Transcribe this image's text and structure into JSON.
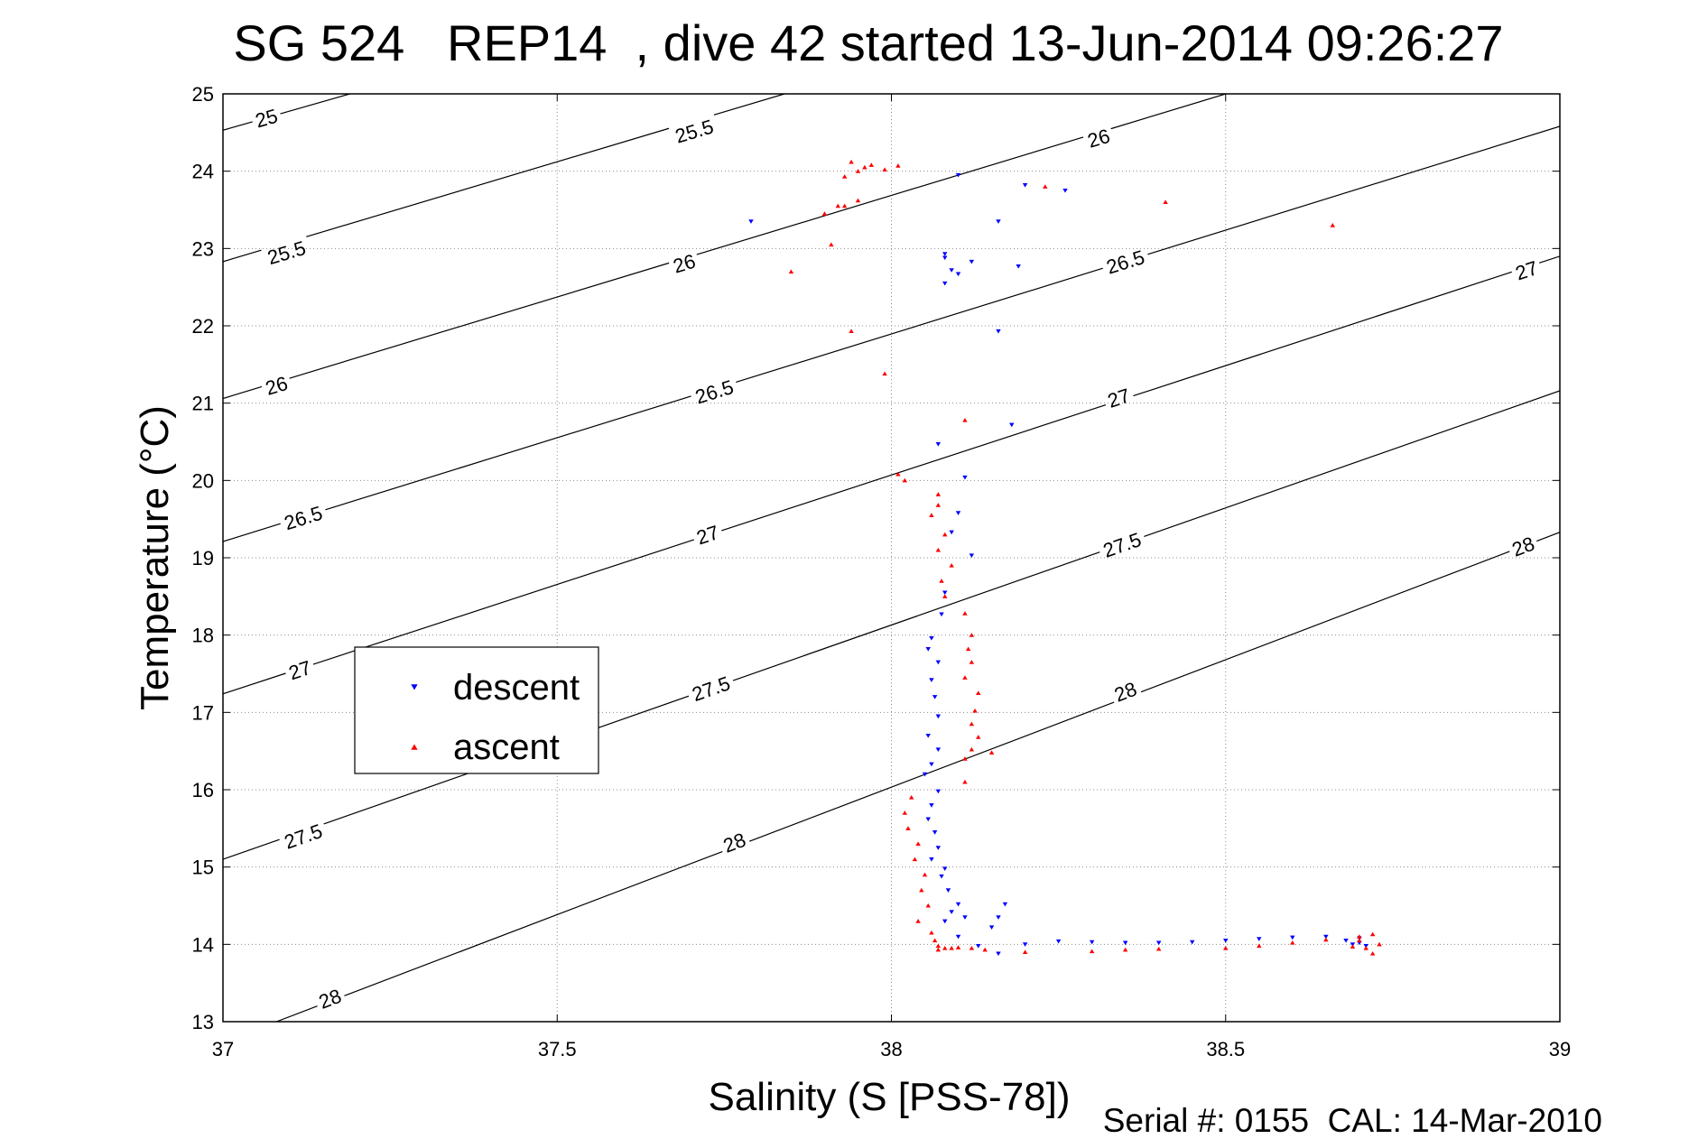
{
  "chart_data": {
    "type": "scatter",
    "title": "SG 524   REP14  , dive 42 started 13-Jun-2014 09:26:27",
    "xlabel": "Salinity (S [PSS-78])",
    "ylabel": "Temperature (°C)",
    "xlim": [
      37,
      39
    ],
    "ylim": [
      13,
      25
    ],
    "x_ticks": [
      "37",
      "37.5",
      "38",
      "38.5",
      "39"
    ],
    "y_ticks": [
      "13",
      "14",
      "15",
      "16",
      "17",
      "18",
      "19",
      "20",
      "21",
      "22",
      "23",
      "24",
      "25"
    ],
    "grid": true,
    "legend_position": "middle-left",
    "footer": "Serial #: 0155  CAL: 14-Mar-2010",
    "density_contours": [
      {
        "label": "25",
        "points": [
          [
            37.0,
            24.53
          ],
          [
            37.19,
            25.0
          ]
        ],
        "label_at": [
          [
            37.065,
            24.69
          ]
        ]
      },
      {
        "label": "25.5",
        "points": [
          [
            37.0,
            22.83
          ],
          [
            37.84,
            25.0
          ]
        ],
        "label_at": [
          [
            37.095,
            22.95
          ],
          [
            37.705,
            24.52
          ]
        ]
      },
      {
        "label": "26",
        "points": [
          [
            37.0,
            21.06
          ],
          [
            38.5,
            25.0
          ]
        ],
        "label_at": [
          [
            37.08,
            21.23
          ],
          [
            37.69,
            22.81
          ],
          [
            38.31,
            24.43
          ]
        ]
      },
      {
        "label": "26.5",
        "points": [
          [
            37.0,
            19.21
          ],
          [
            39.0,
            24.58
          ]
        ],
        "label_at": [
          [
            37.12,
            19.52
          ],
          [
            37.735,
            21.15
          ],
          [
            38.35,
            22.83
          ]
        ]
      },
      {
        "label": "27",
        "points": [
          [
            37.0,
            17.24
          ],
          [
            39.0,
            22.9
          ]
        ],
        "label_at": [
          [
            37.115,
            17.55
          ],
          [
            37.725,
            19.3
          ],
          [
            38.34,
            21.07
          ],
          [
            38.95,
            22.72
          ]
        ]
      },
      {
        "label": "27.5",
        "points": [
          [
            37.0,
            15.1
          ],
          [
            39.0,
            21.16
          ]
        ],
        "label_at": [
          [
            37.12,
            15.4
          ],
          [
            37.73,
            17.31
          ],
          [
            38.345,
            19.17
          ]
        ]
      },
      {
        "label": "28",
        "points": [
          [
            37.08,
            13.0
          ],
          [
            39.0,
            19.33
          ]
        ],
        "label_at": [
          [
            37.16,
            13.3
          ],
          [
            37.765,
            15.32
          ],
          [
            38.35,
            17.27
          ],
          [
            38.945,
            19.15
          ]
        ]
      }
    ],
    "series": [
      {
        "name": "descent",
        "color": "#0000ff",
        "marker": "triangle-down",
        "x": [
          37.79,
          38.1,
          38.2,
          38.26,
          38.16,
          38.08,
          38.09,
          38.08,
          38.1,
          38.12,
          38.19,
          38.08,
          38.16,
          38.18,
          38.07,
          38.11,
          38.1,
          38.09,
          38.12,
          38.08,
          38.075,
          38.06,
          38.055,
          38.07,
          38.06,
          38.065,
          38.07,
          38.055,
          38.07,
          38.06,
          38.05,
          38.07,
          38.06,
          38.055,
          38.065,
          38.07,
          38.06,
          38.08,
          38.075,
          38.085,
          38.1,
          38.09,
          38.11,
          38.08,
          38.17,
          38.16,
          38.15,
          38.1,
          38.13,
          38.16,
          38.2,
          38.25,
          38.3,
          38.35,
          38.4,
          38.45,
          38.5,
          38.55,
          38.6,
          38.65,
          38.7,
          38.68,
          38.69,
          38.7,
          38.71
        ],
        "y": [
          23.35,
          23.95,
          23.82,
          23.75,
          23.35,
          22.93,
          22.72,
          22.55,
          22.67,
          22.83,
          22.77,
          22.88,
          21.93,
          20.72,
          20.47,
          20.04,
          19.58,
          19.33,
          19.03,
          18.55,
          18.27,
          17.96,
          17.82,
          17.65,
          17.42,
          17.2,
          16.95,
          16.7,
          16.52,
          16.33,
          16.2,
          15.98,
          15.8,
          15.62,
          15.45,
          15.25,
          15.1,
          14.98,
          14.88,
          14.7,
          14.52,
          14.42,
          14.35,
          14.3,
          14.52,
          14.35,
          14.22,
          14.1,
          13.98,
          13.88,
          14.0,
          14.04,
          14.03,
          14.02,
          14.02,
          14.03,
          14.05,
          14.07,
          14.09,
          14.1,
          14.08,
          14.05,
          14.0,
          14.02,
          13.98
        ]
      },
      {
        "name": "ascent",
        "color": "#ff0000",
        "marker": "triangle-up",
        "x": [
          37.94,
          37.95,
          37.96,
          37.97,
          37.93,
          38.01,
          37.99,
          37.92,
          37.9,
          37.95,
          37.93,
          38.23,
          38.41,
          38.66,
          37.91,
          37.85,
          37.94,
          37.99,
          38.11,
          38.01,
          38.02,
          38.07,
          38.07,
          38.06,
          38.08,
          38.07,
          38.09,
          38.075,
          38.08,
          38.11,
          38.12,
          38.115,
          38.12,
          38.11,
          38.13,
          38.125,
          38.12,
          38.13,
          38.12,
          38.11,
          38.15,
          38.11,
          38.03,
          38.02,
          38.025,
          38.04,
          38.035,
          38.05,
          38.045,
          38.055,
          38.04,
          38.06,
          38.065,
          38.07,
          38.08,
          38.07,
          38.09,
          38.1,
          38.12,
          38.14,
          38.2,
          38.3,
          38.35,
          38.4,
          38.5,
          38.55,
          38.6,
          38.65,
          38.7,
          38.72,
          38.73,
          38.71,
          38.72,
          38.7,
          38.69
        ],
        "y": [
          24.12,
          24.0,
          24.05,
          24.08,
          23.93,
          24.07,
          24.02,
          23.55,
          23.45,
          23.62,
          23.55,
          23.8,
          23.6,
          23.3,
          23.05,
          22.7,
          21.93,
          21.38,
          20.78,
          20.08,
          20.0,
          19.82,
          19.68,
          19.55,
          19.3,
          19.1,
          18.9,
          18.7,
          18.5,
          18.28,
          18.0,
          17.82,
          17.65,
          17.45,
          17.25,
          17.02,
          16.85,
          16.68,
          16.52,
          16.4,
          16.48,
          16.1,
          15.9,
          15.7,
          15.5,
          15.3,
          15.1,
          14.9,
          14.7,
          14.5,
          14.3,
          14.15,
          14.05,
          13.98,
          13.95,
          13.93,
          13.95,
          13.96,
          13.95,
          13.93,
          13.9,
          13.91,
          13.93,
          13.94,
          13.95,
          13.98,
          14.02,
          14.06,
          14.1,
          14.13,
          14.0,
          13.95,
          13.88,
          14.05,
          13.97
        ]
      }
    ]
  }
}
